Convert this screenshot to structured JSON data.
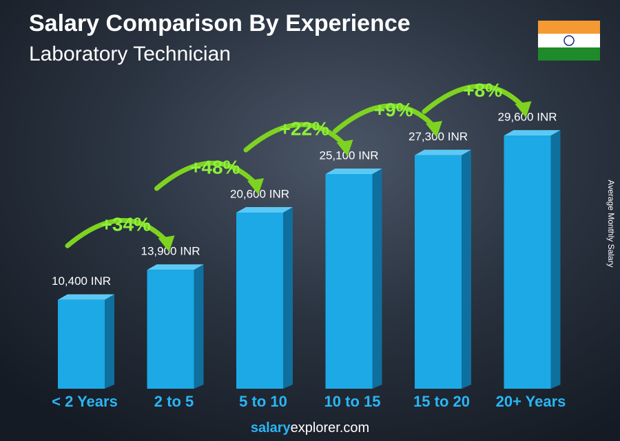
{
  "chart_data": {
    "type": "bar",
    "title": "Salary Comparison By Experience",
    "subtitle": "Laboratory Technician",
    "categories": [
      "< 2 Years",
      "2 to 5",
      "5 to 10",
      "10 to 15",
      "15 to 20",
      "20+ Years"
    ],
    "values": [
      10400,
      13900,
      20600,
      25100,
      27300,
      29600
    ],
    "value_labels": [
      "10,400 INR",
      "13,900 INR",
      "20,600 INR",
      "25,100 INR",
      "27,300 INR",
      "29,600 INR"
    ],
    "annotations": [
      "+34%",
      "+48%",
      "+22%",
      "+9%",
      "+8%"
    ],
    "y_label": "Average Monthly Salary",
    "color": "#1ca9e6",
    "footer": {
      "bold": "salary",
      "rest": "explorer.com"
    }
  }
}
